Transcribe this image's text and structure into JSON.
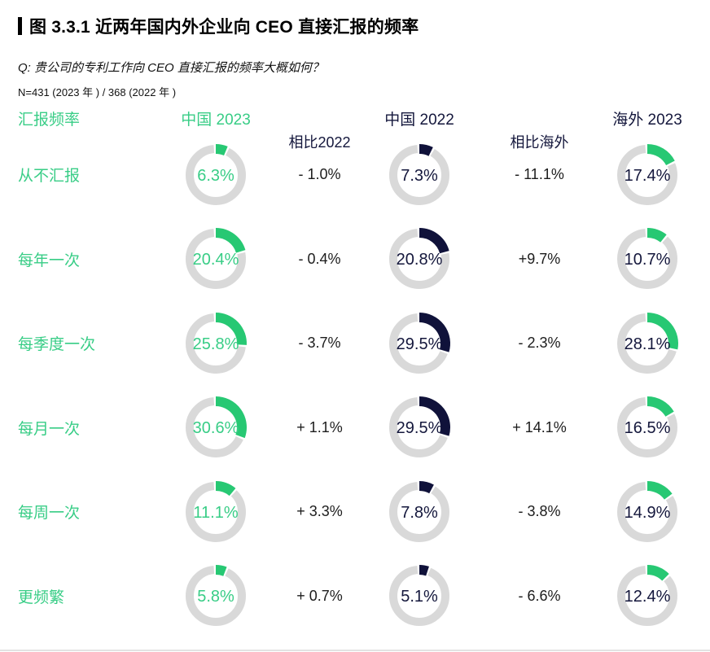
{
  "title": "图 3.3.1 近两年国内外企业向 CEO 直接汇报的频率",
  "question": "Q: 贵公司的专利工作向 CEO 直接汇报的频率大概如何？",
  "sample": "N=431 (2023 年 ) / 368 (2022 年 )",
  "colors": {
    "green": "#27c873",
    "green_label": "#38cd86",
    "navy": "#10123a",
    "navy_text": "#14173c",
    "ring_gray": "#d9d9d9"
  },
  "header": {
    "frequency": "汇报频率",
    "china2023": "中国 2023",
    "delta2022": "相比2022",
    "china2022": "中国 2022",
    "delta_overseas": "相比海外",
    "overseas2023": "海外 2023"
  },
  "chart_data": {
    "type": "pie",
    "subtype": "donut-grid",
    "title": "图 3.3.1 近两年国内外企业向 CEO 直接汇报的频率",
    "unit": "%",
    "donut_start_angle": "12-o'clock, clockwise",
    "categories": [
      "从不汇报",
      "每年一次",
      "每季度一次",
      "每月一次",
      "每周一次",
      "更频繁"
    ],
    "series": [
      {
        "key": "china-2023",
        "name": "中国 2023",
        "display": "donut",
        "arc_color": "#27c873",
        "value_color": "#38cd86",
        "values": [
          6.3,
          20.4,
          25.8,
          30.6,
          11.1,
          5.8
        ]
      },
      {
        "key": "delta-vs-2022",
        "name": "相比2022",
        "display": "text",
        "values": [
          -1.0,
          -0.4,
          -3.7,
          1.1,
          3.3,
          0.7
        ],
        "labels": [
          "- 1.0%",
          "- 0.4%",
          "- 3.7%",
          "+ 1.1%",
          "+ 3.3%",
          "+ 0.7%"
        ]
      },
      {
        "key": "china-2022",
        "name": "中国 2022",
        "display": "donut",
        "arc_color": "#10123a",
        "value_color": "#14173c",
        "values": [
          7.3,
          20.8,
          29.5,
          29.5,
          7.8,
          5.1
        ]
      },
      {
        "key": "delta-vs-overseas",
        "name": "相比海外",
        "display": "text",
        "values": [
          -11.1,
          9.7,
          -2.3,
          14.1,
          -3.8,
          -6.6
        ],
        "labels": [
          "- 11.1%",
          "+9.7%",
          "- 2.3%",
          "+ 14.1%",
          "- 3.8%",
          "- 6.6%"
        ]
      },
      {
        "key": "overseas-2023",
        "name": "海外 2023",
        "display": "donut",
        "arc_color": "#27c873",
        "value_color": "#14173c",
        "values": [
          17.4,
          10.7,
          28.1,
          16.5,
          14.9,
          12.4
        ]
      }
    ]
  }
}
